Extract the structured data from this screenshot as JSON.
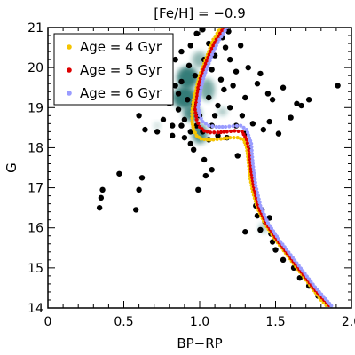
{
  "chart_data": {
    "type": "scatter",
    "title": "[Fe/H] = −0.9",
    "xlabel": "BP−RP",
    "ylabel": "G",
    "xlim": [
      0.0,
      2.0
    ],
    "ylim": [
      21,
      14
    ],
    "y_inverted": true,
    "x_ticks": [
      0,
      0.5,
      1.0,
      1.5,
      2.0
    ],
    "x_tick_labels": [
      "0",
      "0.5",
      "1.0",
      "1.5",
      "2.0"
    ],
    "y_ticks": [
      14,
      15,
      16,
      17,
      18,
      19,
      20,
      21
    ],
    "y_tick_labels": [
      "14",
      "15",
      "16",
      "17",
      "18",
      "19",
      "20",
      "21"
    ],
    "grid": false,
    "legend_position": "top-left",
    "colors": {
      "stars": "#000000",
      "density": "#1e6f6a",
      "age4": "#f5c400",
      "age5": "#dd0000",
      "age6": "#9a9cff"
    },
    "density_clumps": [
      {
        "x": 1.0,
        "y": 18.35,
        "rx": 0.05,
        "ry": 0.25,
        "level": 0.8
      },
      {
        "x": 0.95,
        "y": 18.85,
        "rx": 0.06,
        "ry": 0.2,
        "level": 0.8
      },
      {
        "x": 0.9,
        "y": 19.25,
        "rx": 0.08,
        "ry": 0.28,
        "level": 0.9
      },
      {
        "x": 0.92,
        "y": 19.75,
        "rx": 0.07,
        "ry": 0.28,
        "level": 0.9
      },
      {
        "x": 1.05,
        "y": 19.45,
        "rx": 0.05,
        "ry": 0.28,
        "level": 0.6
      },
      {
        "x": 1.0,
        "y": 20.2,
        "rx": 0.05,
        "ry": 0.2,
        "level": 0.5
      },
      {
        "x": 1.42,
        "y": 16.0,
        "rx": 0.03,
        "ry": 0.12,
        "level": 0.4
      },
      {
        "x": 0.72,
        "y": 18.55,
        "rx": 0.02,
        "ry": 0.08,
        "level": 0.3
      },
      {
        "x": 1.15,
        "y": 18.9,
        "rx": 0.03,
        "ry": 0.1,
        "level": 0.4
      }
    ],
    "stars": [
      [
        0.34,
        16.5
      ],
      [
        0.35,
        16.75
      ],
      [
        0.36,
        16.95
      ],
      [
        0.47,
        17.35
      ],
      [
        0.58,
        16.45
      ],
      [
        0.6,
        16.95
      ],
      [
        0.62,
        17.25
      ],
      [
        0.64,
        18.45
      ],
      [
        0.6,
        18.8
      ],
      [
        0.56,
        19.2
      ],
      [
        0.55,
        19.55
      ],
      [
        0.37,
        19.7
      ],
      [
        0.52,
        20.1
      ],
      [
        0.4,
        20.45
      ],
      [
        0.45,
        20.55
      ],
      [
        0.54,
        20.65
      ],
      [
        0.66,
        20.15
      ],
      [
        0.68,
        20.35
      ],
      [
        0.72,
        18.4
      ],
      [
        0.76,
        18.7
      ],
      [
        0.82,
        18.55
      ],
      [
        0.82,
        18.3
      ],
      [
        0.9,
        18.25
      ],
      [
        0.96,
        17.95
      ],
      [
        0.94,
        18.1
      ],
      [
        1.03,
        17.7
      ],
      [
        1.08,
        17.45
      ],
      [
        1.04,
        17.3
      ],
      [
        0.99,
        16.95
      ],
      [
        1.25,
        17.8
      ],
      [
        1.33,
        18.0
      ],
      [
        1.3,
        18.35
      ],
      [
        1.35,
        18.6
      ],
      [
        1.42,
        18.45
      ],
      [
        1.46,
        18.65
      ],
      [
        1.52,
        18.35
      ],
      [
        1.6,
        18.75
      ],
      [
        1.67,
        19.05
      ],
      [
        1.72,
        19.2
      ],
      [
        1.48,
        19.2
      ],
      [
        1.45,
        19.35
      ],
      [
        1.38,
        19.6
      ],
      [
        1.4,
        19.85
      ],
      [
        1.32,
        20.0
      ],
      [
        1.22,
        19.55
      ],
      [
        1.24,
        19.9
      ],
      [
        1.2,
        20.2
      ],
      [
        1.17,
        20.5
      ],
      [
        1.15,
        20.75
      ],
      [
        1.1,
        20.3
      ],
      [
        1.06,
        20.6
      ],
      [
        1.02,
        20.95
      ],
      [
        0.98,
        20.85
      ],
      [
        0.94,
        20.55
      ],
      [
        0.88,
        20.4
      ],
      [
        0.84,
        20.2
      ],
      [
        0.8,
        20.0
      ],
      [
        0.78,
        19.8
      ],
      [
        0.84,
        19.55
      ],
      [
        0.86,
        19.35
      ],
      [
        0.8,
        19.1
      ],
      [
        0.86,
        18.95
      ],
      [
        0.9,
        18.7
      ],
      [
        0.98,
        18.55
      ],
      [
        1.02,
        18.4
      ],
      [
        1.08,
        18.55
      ],
      [
        1.1,
        18.8
      ],
      [
        1.12,
        19.05
      ],
      [
        1.06,
        19.25
      ],
      [
        1.0,
        19.5
      ],
      [
        0.97,
        19.8
      ],
      [
        0.93,
        20.05
      ],
      [
        1.03,
        20.2
      ],
      [
        1.08,
        19.95
      ],
      [
        1.14,
        19.7
      ],
      [
        1.16,
        19.45
      ],
      [
        0.88,
        19.65
      ],
      [
        0.92,
        19.2
      ],
      [
        0.96,
        19.05
      ],
      [
        1.0,
        18.8
      ],
      [
        0.94,
        18.4
      ],
      [
        0.88,
        18.55
      ],
      [
        1.06,
        18.2
      ],
      [
        1.12,
        18.3
      ],
      [
        1.18,
        18.25
      ],
      [
        1.24,
        18.55
      ],
      [
        1.28,
        18.8
      ],
      [
        1.2,
        19.0
      ],
      [
        1.3,
        19.25
      ],
      [
        1.27,
        20.55
      ],
      [
        1.19,
        20.9
      ],
      [
        1.4,
        15.95
      ],
      [
        1.43,
        16.15
      ],
      [
        1.41,
        16.45
      ],
      [
        1.46,
        16.25
      ],
      [
        1.48,
        15.65
      ],
      [
        1.47,
        15.85
      ],
      [
        1.38,
        16.3
      ],
      [
        1.37,
        16.55
      ],
      [
        1.3,
        15.9
      ],
      [
        1.5,
        15.45
      ],
      [
        1.55,
        15.2
      ],
      [
        1.62,
        15.0
      ],
      [
        1.66,
        14.75
      ],
      [
        1.72,
        14.55
      ],
      [
        1.78,
        14.3
      ],
      [
        1.84,
        14.1
      ],
      [
        1.91,
        19.55
      ],
      [
        1.64,
        19.1
      ],
      [
        1.55,
        19.5
      ]
    ],
    "series": [
      {
        "name": "Age = 4 Gyr",
        "color": "#f5c400",
        "x": [
          1.14,
          1.09,
          1.06,
          1.03,
          1.0,
          0.98,
          0.96,
          0.95,
          0.95,
          0.96,
          0.98,
          1.01,
          1.05,
          1.09,
          1.14,
          1.2,
          1.25,
          1.29,
          1.31,
          1.32,
          1.33,
          1.35,
          1.38,
          1.43,
          1.5,
          1.58,
          1.66,
          1.74,
          1.8,
          1.85
        ],
        "y": [
          21.0,
          20.7,
          20.4,
          20.1,
          19.8,
          19.5,
          19.2,
          18.9,
          18.65,
          18.45,
          18.3,
          18.22,
          18.2,
          18.2,
          18.22,
          18.25,
          18.25,
          18.2,
          18.0,
          17.7,
          17.3,
          16.9,
          16.5,
          16.1,
          15.7,
          15.3,
          14.9,
          14.5,
          14.2,
          14.0
        ]
      },
      {
        "name": "Age = 5 Gyr",
        "color": "#dd0000",
        "x": [
          1.16,
          1.11,
          1.07,
          1.04,
          1.01,
          0.99,
          0.98,
          0.97,
          0.98,
          1.0,
          1.03,
          1.07,
          1.12,
          1.18,
          1.23,
          1.28,
          1.31,
          1.33,
          1.34,
          1.36,
          1.39,
          1.44,
          1.51,
          1.59,
          1.67,
          1.75,
          1.82,
          1.87
        ],
        "y": [
          21.0,
          20.7,
          20.4,
          20.1,
          19.8,
          19.5,
          19.2,
          18.95,
          18.7,
          18.52,
          18.42,
          18.38,
          18.38,
          18.4,
          18.42,
          18.4,
          18.2,
          17.85,
          17.4,
          16.95,
          16.5,
          16.1,
          15.7,
          15.3,
          14.9,
          14.5,
          14.2,
          14.0
        ]
      },
      {
        "name": "Age = 6 Gyr",
        "color": "#9a9cff",
        "x": [
          1.18,
          1.13,
          1.09,
          1.06,
          1.03,
          1.01,
          1.0,
          0.99,
          1.0,
          1.02,
          1.06,
          1.11,
          1.17,
          1.22,
          1.27,
          1.31,
          1.34,
          1.35,
          1.37,
          1.4,
          1.45,
          1.52,
          1.6,
          1.68,
          1.76,
          1.83,
          1.88
        ],
        "y": [
          21.0,
          20.7,
          20.4,
          20.1,
          19.8,
          19.5,
          19.25,
          19.0,
          18.8,
          18.65,
          18.55,
          18.52,
          18.52,
          18.54,
          18.55,
          18.45,
          18.1,
          17.6,
          17.05,
          16.55,
          16.12,
          15.72,
          15.32,
          14.92,
          14.52,
          14.22,
          14.0
        ]
      }
    ]
  }
}
